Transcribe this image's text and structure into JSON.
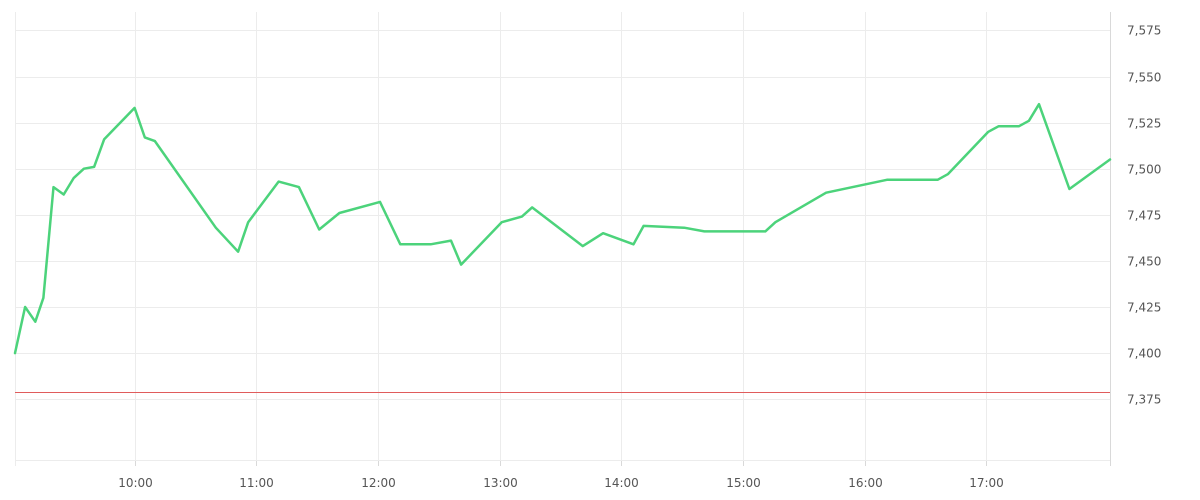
{
  "chart_data": {
    "type": "line",
    "title": "",
    "xlabel": "",
    "ylabel": "",
    "x_ticks": [
      "10:00",
      "11:00",
      "12:00",
      "13:00",
      "14:00",
      "15:00",
      "16:00",
      "17:00"
    ],
    "y_ticks": [
      "7,375",
      "7,400",
      "7,425",
      "7,450",
      "7,475",
      "7,500",
      "7,525",
      "7,550",
      "7,575"
    ],
    "xlim": [
      "09:01",
      "18:01"
    ],
    "ylim": [
      7342,
      7585
    ],
    "grid": true,
    "y_axis_side": "right",
    "reference_line": {
      "value": 7379,
      "color": "#e05c5c"
    },
    "series": [
      {
        "color": "#4cd37b",
        "points": [
          [
            "09:01",
            7400
          ],
          [
            "09:06",
            7425
          ],
          [
            "09:11",
            7417
          ],
          [
            "09:15",
            7430
          ],
          [
            "09:20",
            7490
          ],
          [
            "09:25",
            7486
          ],
          [
            "09:30",
            7495
          ],
          [
            "09:35",
            7500
          ],
          [
            "09:40",
            7501
          ],
          [
            "09:45",
            7516
          ],
          [
            "10:00",
            7533
          ],
          [
            "10:05",
            7517
          ],
          [
            "10:10",
            7515
          ],
          [
            "10:40",
            7468
          ],
          [
            "10:51",
            7455
          ],
          [
            "10:56",
            7471
          ],
          [
            "11:11",
            7493
          ],
          [
            "11:21",
            7490
          ],
          [
            "11:31",
            7467
          ],
          [
            "11:41",
            7476
          ],
          [
            "12:01",
            7482
          ],
          [
            "12:11",
            7459
          ],
          [
            "12:26",
            7459
          ],
          [
            "12:36",
            7461
          ],
          [
            "12:41",
            7448
          ],
          [
            "13:01",
            7471
          ],
          [
            "13:11",
            7474
          ],
          [
            "13:16",
            7479
          ],
          [
            "13:41",
            7458
          ],
          [
            "13:51",
            7465
          ],
          [
            "14:06",
            7459
          ],
          [
            "14:11",
            7469
          ],
          [
            "14:31",
            7468
          ],
          [
            "14:41",
            7466
          ],
          [
            "15:11",
            7466
          ],
          [
            "15:16",
            7471
          ],
          [
            "15:41",
            7487
          ],
          [
            "16:11",
            7494
          ],
          [
            "16:36",
            7494
          ],
          [
            "16:41",
            7497
          ],
          [
            "17:01",
            7520
          ],
          [
            "17:06",
            7523
          ],
          [
            "17:16",
            7523
          ],
          [
            "17:21",
            7526
          ],
          [
            "17:26",
            7535
          ],
          [
            "17:41",
            7489
          ],
          [
            "18:01",
            7505
          ]
        ]
      }
    ]
  }
}
